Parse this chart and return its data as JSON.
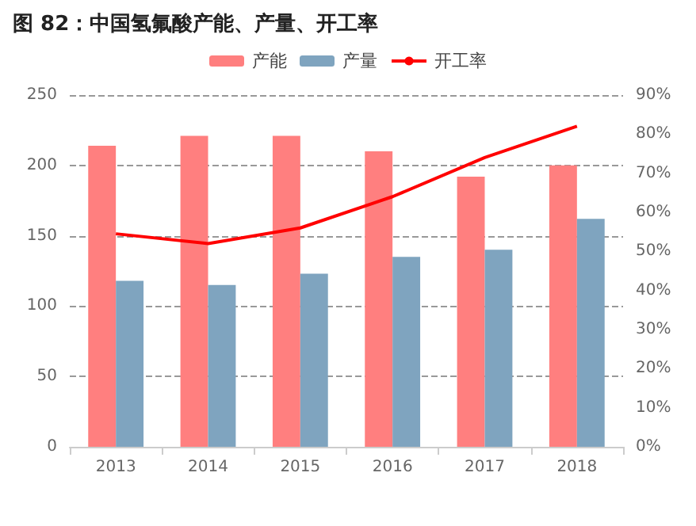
{
  "chart_data": {
    "type": "bar",
    "title": "图 82：中国氢氟酸产能、产量、开工率",
    "categories": [
      "2013",
      "2014",
      "2015",
      "2016",
      "2017",
      "2018"
    ],
    "series": [
      {
        "name": "产能",
        "color": "#ff7f7f",
        "values": [
          214,
          221,
          221,
          210,
          192,
          200
        ]
      },
      {
        "name": "产量",
        "color": "#7fa4bf",
        "values": [
          118,
          115,
          123,
          135,
          140,
          162
        ]
      },
      {
        "name": "开工率",
        "type": "line",
        "axis": "y2",
        "color": "#ff0000",
        "values": [
          54.5,
          52,
          56,
          64,
          74,
          82
        ]
      }
    ],
    "ylim": [
      0,
      250
    ],
    "yticks": [
      0,
      50,
      100,
      150,
      200,
      250
    ],
    "y2lim": [
      0,
      90
    ],
    "y2ticks": [
      {
        "value": 0,
        "label": "0%"
      },
      {
        "value": 10,
        "label": "10%"
      },
      {
        "value": 20,
        "label": "20%"
      },
      {
        "value": 30,
        "label": "30%"
      },
      {
        "value": 40,
        "label": "40%"
      },
      {
        "value": 50,
        "label": "50%"
      },
      {
        "value": 60,
        "label": "60%"
      },
      {
        "value": 70,
        "label": "70%"
      },
      {
        "value": 80,
        "label": "80%"
      },
      {
        "value": 90,
        "label": "90%"
      }
    ],
    "grid": "y",
    "legend": "top",
    "marker": "none",
    "line_style": "solid"
  }
}
